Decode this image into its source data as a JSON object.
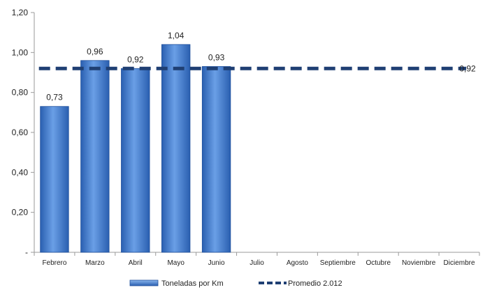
{
  "chart_data": {
    "type": "bar",
    "categories": [
      "Febrero",
      "Marzo",
      "Abril",
      "Mayo",
      "Junio",
      "Julio",
      "Agosto",
      "Septiembre",
      "Octubre",
      "Noviembre",
      "Diciembre"
    ],
    "series": [
      {
        "name": "Toneladas por Km",
        "type": "bar",
        "values": [
          0.73,
          0.96,
          0.92,
          1.04,
          0.93,
          null,
          null,
          null,
          null,
          null,
          null
        ]
      },
      {
        "name": "Promedio 2.012",
        "type": "line",
        "style": "dashed",
        "value": 0.92
      }
    ],
    "data_labels": [
      "0,73",
      "0,96",
      "0,92",
      "1,04",
      "0,93"
    ],
    "average_label": "0,92",
    "ylim": [
      0,
      1.2
    ],
    "yticks": [
      0,
      0.2,
      0.4,
      0.6,
      0.8,
      1.0,
      1.2
    ],
    "ytick_labels": [
      "-",
      "0,20",
      "0,40",
      "0,60",
      "0,80",
      "1,00",
      "1,20"
    ],
    "grid": false,
    "legend_position": "bottom",
    "colors": {
      "bar_light": "#6a9fe6",
      "bar_dark": "#2a5fb0",
      "bar_edge": "#1e4f9c",
      "average": "#1f3f73",
      "axis": "#9a9a9a"
    }
  }
}
